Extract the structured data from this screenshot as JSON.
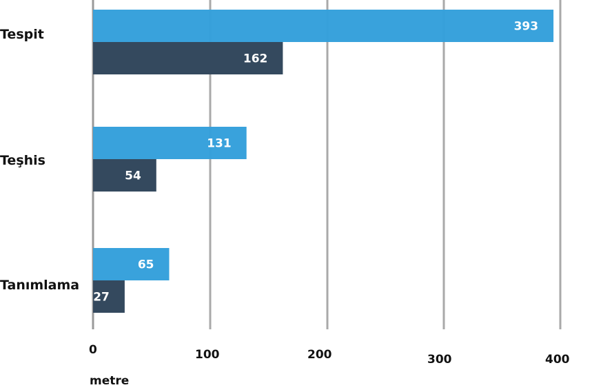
{
  "chart_data": {
    "type": "bar",
    "orientation": "horizontal",
    "categories": [
      "Tespit",
      "Teşhis",
      "Tanımlama"
    ],
    "series": [
      {
        "values": [
          393,
          131,
          65
        ],
        "color": "#35a0db"
      },
      {
        "values": [
          162,
          54,
          27
        ],
        "color": "#34495e"
      }
    ],
    "data_labels": [
      [
        "393",
        "131",
        "65"
      ],
      [
        "162",
        "54",
        "27"
      ]
    ],
    "xlabel": "metre",
    "ylabel": "",
    "xlim": [
      0,
      400
    ],
    "xticks": [
      "0",
      "100",
      "200",
      "300",
      "400"
    ],
    "grid": true,
    "legend": "none"
  }
}
